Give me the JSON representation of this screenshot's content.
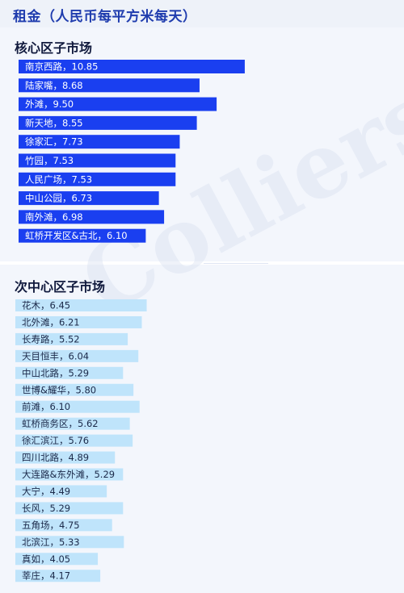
{
  "title": "租金（人民币每平方米每天）",
  "watermark": "Colliers",
  "chart_data": [
    {
      "type": "bar",
      "orientation": "horizontal",
      "title": "核心区子市场",
      "color": "#1a3ff0",
      "label_color": "#ffffff",
      "categories": [
        "南京西路",
        "陆家嘴",
        "外滩",
        "新天地",
        "徐家汇",
        "竹园",
        "人民广场",
        "中山公园",
        "南外滩",
        "虹桥开发区&古北"
      ],
      "values": [
        10.85,
        8.68,
        9.5,
        8.55,
        7.73,
        7.53,
        7.53,
        6.73,
        6.98,
        6.1
      ],
      "labels": [
        "南京西路，10.85",
        "陆家嘴，8.68",
        "外滩，9.50",
        "新天地，8.55",
        "徐家汇，7.73",
        "竹园，7.53",
        "人民广场，7.53",
        "中山公园，6.73",
        "南外滩，6.98",
        "虹桥开发区&古北，6.10"
      ]
    },
    {
      "type": "bar",
      "orientation": "horizontal",
      "title": "次中心区子市场",
      "color": "#bfe4fb",
      "label_color": "#1c2a4a",
      "categories": [
        "花木",
        "北外滩",
        "长寿路",
        "天目恒丰",
        "中山北路",
        "世博&耀华",
        "前滩",
        "虹桥商务区",
        "徐汇滨江",
        "四川北路",
        "大连路&东外滩",
        "大宁",
        "长风",
        "五角场",
        "北滨江",
        "真如",
        "莘庄"
      ],
      "values": [
        6.45,
        6.21,
        5.52,
        6.04,
        5.29,
        5.8,
        6.1,
        5.62,
        5.76,
        4.89,
        5.29,
        4.49,
        5.29,
        4.75,
        5.33,
        4.05,
        4.17
      ],
      "labels": [
        "花木，6.45",
        "北外滩，6.21",
        "长寿路，5.52",
        "天目恒丰，6.04",
        "中山北路，5.29",
        "世博&耀华，5.80",
        "前滩，6.10",
        "虹桥商务区，5.62",
        "徐汇滨江，5.76",
        "四川北路，4.89",
        "大连路&东外滩，5.29",
        "大宁，4.49",
        "长风，5.29",
        "五角场，4.75",
        "北滨江，5.33",
        "真如，4.05",
        "莘庄，4.17"
      ]
    }
  ]
}
